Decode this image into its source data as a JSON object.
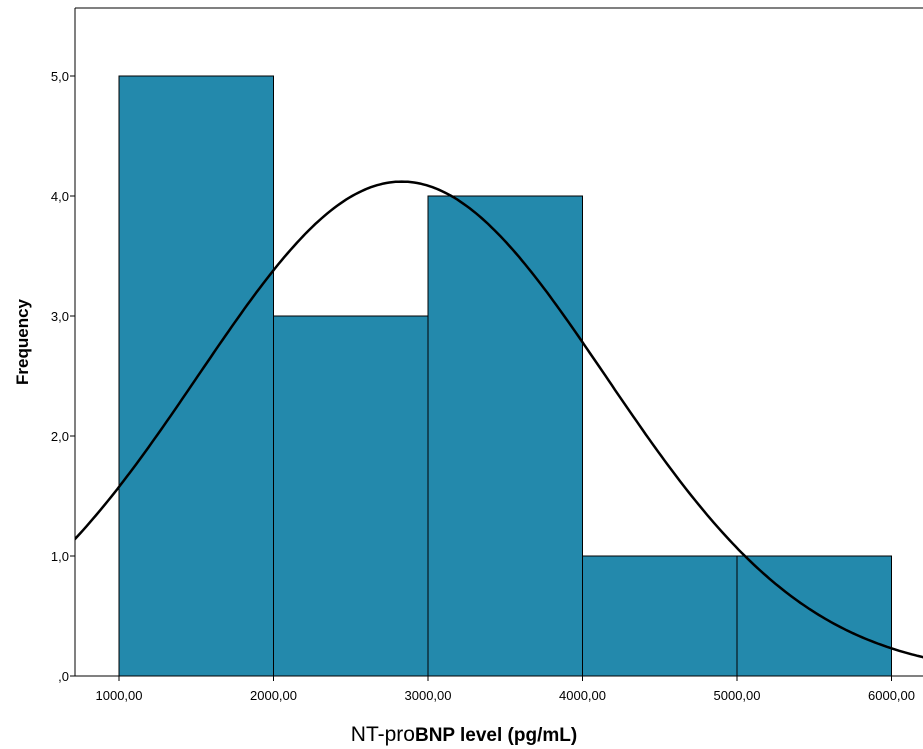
{
  "chart_data": {
    "type": "bar",
    "subtype": "histogram",
    "bins": [
      {
        "from": 1000,
        "to": 2000,
        "value": 5
      },
      {
        "from": 2000,
        "to": 3000,
        "value": 3
      },
      {
        "from": 3000,
        "to": 4000,
        "value": 4
      },
      {
        "from": 4000,
        "to": 5000,
        "value": 1
      },
      {
        "from": 5000,
        "to": 6000,
        "value": 1
      }
    ],
    "normal_curve": {
      "shown": true,
      "mean": 2830,
      "sd": 1320,
      "peak": 4.12
    },
    "x_ticks": [
      {
        "value": 1000,
        "label": "1000,00"
      },
      {
        "value": 2000,
        "label": "2000,00"
      },
      {
        "value": 3000,
        "label": "3000,00"
      },
      {
        "value": 4000,
        "label": "4000,00"
      },
      {
        "value": 5000,
        "label": "5000,00"
      },
      {
        "value": 6000,
        "label": "6000,00"
      }
    ],
    "y_ticks": [
      {
        "value": 0,
        "label": ",0"
      },
      {
        "value": 1,
        "label": "1,0"
      },
      {
        "value": 2,
        "label": "2,0"
      },
      {
        "value": 3,
        "label": "3,0"
      },
      {
        "value": 4,
        "label": "4,0"
      },
      {
        "value": 5,
        "label": "5,0"
      }
    ],
    "xlim": [
      720,
      6200
    ],
    "ylim": [
      0,
      5.6
    ],
    "xlabel_prefix": "NT-pro",
    "xlabel_main": "BNP level (pg/mL)",
    "ylabel": "Frequency",
    "grid": false,
    "colors": {
      "bar_fill": "#2389AC",
      "bar_stroke": "#000000",
      "curve": "#000000",
      "axis": "#000000"
    }
  }
}
